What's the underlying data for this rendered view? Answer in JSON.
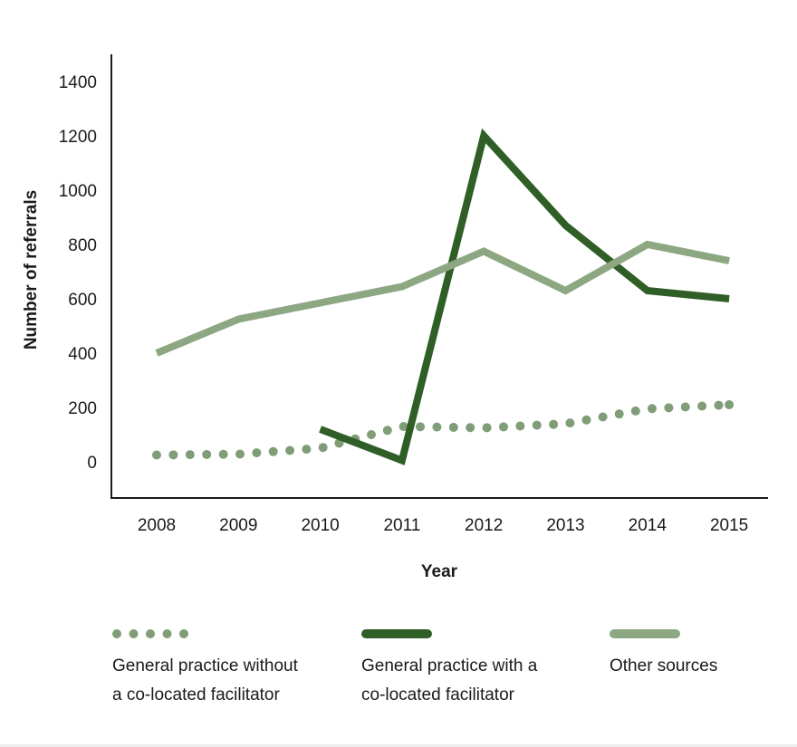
{
  "chart_data": {
    "type": "line",
    "title": "",
    "xlabel": "Year",
    "ylabel": "Number of referrals",
    "x": [
      2008,
      2009,
      2010,
      2011,
      2012,
      2013,
      2014,
      2015
    ],
    "x_tick_labels": [
      "2008",
      "2009",
      "2010",
      "2011",
      "2012",
      "2013",
      "2014",
      "2015"
    ],
    "y_ticks": [
      0,
      200,
      400,
      600,
      800,
      1000,
      1200,
      1400
    ],
    "y_tick_labels": [
      "0",
      "200",
      "400",
      "600",
      "800",
      "1000",
      "1200",
      "1400"
    ],
    "ylim": [
      -130,
      1480
    ],
    "grid": false,
    "legend_position": "bottom",
    "series": [
      {
        "name": "General practice without a co-located facilitator",
        "legend_lines": [
          "General practice without",
          "a co-located facilitator"
        ],
        "style": "dotted",
        "color": "#7f9d76",
        "values": [
          25,
          28,
          50,
          130,
          125,
          140,
          195,
          210
        ]
      },
      {
        "name": "General practice with a co-located facilitator",
        "legend_lines": [
          "General practice with a",
          "co-located facilitator"
        ],
        "style": "solid",
        "color": "#2f5e26",
        "values": [
          null,
          null,
          120,
          5,
          1200,
          870,
          630,
          600
        ]
      },
      {
        "name": "Other sources",
        "legend_lines": [
          "Other sources"
        ],
        "style": "solid",
        "color": "#8ca782",
        "values": [
          400,
          525,
          585,
          645,
          775,
          630,
          800,
          740
        ]
      }
    ]
  }
}
